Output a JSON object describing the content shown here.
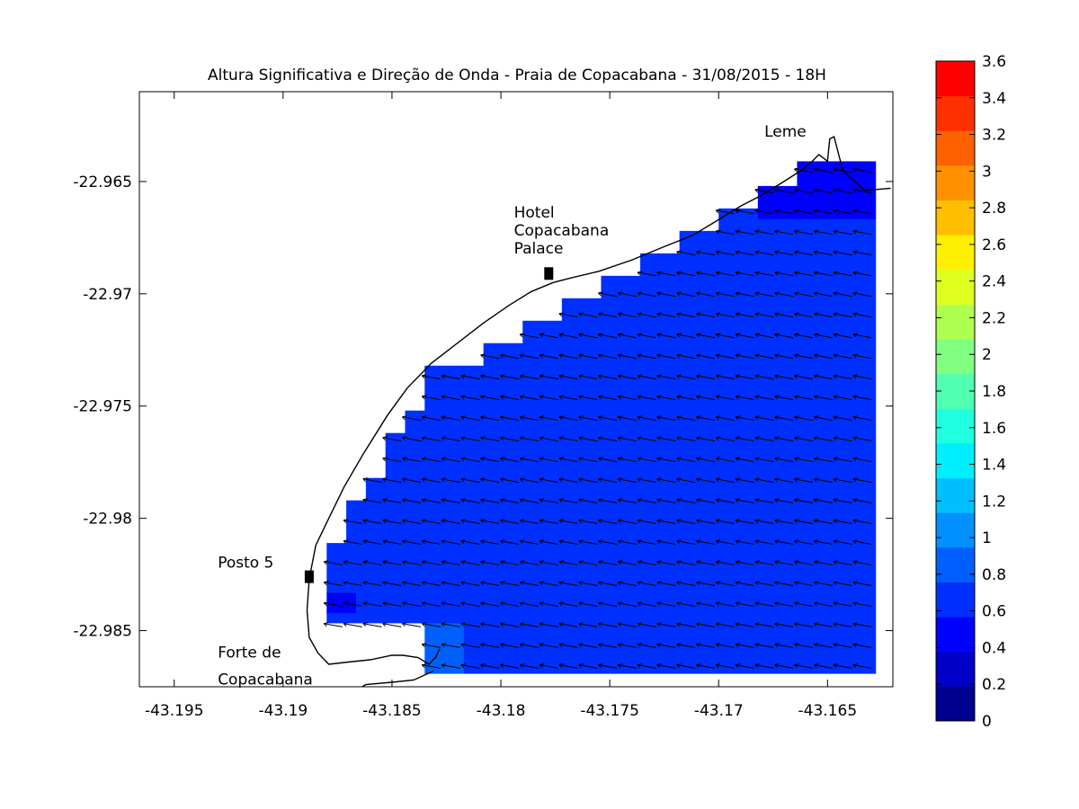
{
  "chart_data": {
    "type": "heatmap",
    "title": "Altura Significativa e Direção de Onda - Praia de Copacabana - 31/08/2015 - 18H",
    "xlabel": "",
    "ylabel": "",
    "xlim": [
      -43.1966,
      -43.162
    ],
    "ylim": [
      -22.9875,
      -22.961
    ],
    "x_ticks": [
      -43.195,
      -43.19,
      -43.185,
      -43.18,
      -43.175,
      -43.17,
      -43.165
    ],
    "x_tick_labels": [
      "-43.195",
      "-43.19",
      "-43.185",
      "-43.18",
      "-43.175",
      "-43.17",
      "-43.165"
    ],
    "y_ticks": [
      -22.965,
      -22.97,
      -22.975,
      -22.98,
      -22.985
    ],
    "y_tick_labels": [
      "-22.965",
      "-22.97",
      "-22.975",
      "-22.98",
      "-22.985"
    ],
    "grid": false,
    "colorbar": {
      "min": 0,
      "max": 3.6,
      "step": 0.2,
      "labels": [
        "0",
        "0.2",
        "0.4",
        "0.6",
        "0.8",
        "1",
        "1.2",
        "1.4",
        "1.6",
        "1.8",
        "2",
        "2.2",
        "2.4",
        "2.6",
        "2.8",
        "3",
        "3.2",
        "3.4",
        "3.6"
      ],
      "colors": [
        "#00008f",
        "#0000c8",
        "#0000ff",
        "#0030ff",
        "#0060ff",
        "#0090ff",
        "#00bfff",
        "#00efff",
        "#20ffdf",
        "#50ffaf",
        "#80ff80",
        "#afff50",
        "#dfff20",
        "#ffef00",
        "#ffbf00",
        "#ff9000",
        "#ff6000",
        "#ff3000",
        "#ff0000"
      ]
    },
    "wave_height": {
      "dominant_value": 0.7,
      "sheltered_leme_value": 0.55,
      "forte_corner_value": 0.95,
      "posto5_edge_value": 0.55
    },
    "wave_direction": {
      "arrow_pointing": "toward north-west (toward the beach)",
      "grid_spacing_deg": 0.00045
    },
    "grid_extent": {
      "east_lon": -43.163,
      "south_lat": -22.9869,
      "west_lon": -43.188,
      "north_lat": -22.964,
      "coast_steps": [
        [
          -43.188,
          -22.9811
        ],
        [
          -43.1871,
          -22.9792
        ],
        [
          -43.1862,
          -22.9782
        ],
        [
          -43.1853,
          -22.9762
        ],
        [
          -43.1843,
          -22.9752
        ],
        [
          -43.1834,
          -22.9732
        ],
        [
          -43.1807,
          -22.9722
        ],
        [
          -43.1789,
          -22.9712
        ],
        [
          -43.1771,
          -22.9702
        ],
        [
          -43.1754,
          -22.9692
        ],
        [
          -43.1735,
          -22.9682
        ],
        [
          -43.1718,
          -22.9672
        ],
        [
          -43.17,
          -22.9662
        ],
        [
          -43.1682,
          -22.9652
        ],
        [
          -43.1664,
          -22.9641
        ],
        [
          -43.165,
          -22.9641
        ]
      ]
    },
    "coastline": [
      [
        -43.1643,
        -22.9645
      ],
      [
        -43.1647,
        -22.963
      ],
      [
        -43.1649,
        -22.9631
      ],
      [
        -43.165,
        -22.9641
      ],
      [
        -43.1654,
        -22.9638
      ],
      [
        -43.1657,
        -22.9641
      ],
      [
        -43.1662,
        -22.9645
      ],
      [
        -43.167,
        -22.965
      ],
      [
        -43.168,
        -22.9656
      ],
      [
        -43.169,
        -22.9661
      ],
      [
        -43.17,
        -22.9667
      ],
      [
        -43.1712,
        -22.9674
      ],
      [
        -43.1725,
        -22.9679
      ],
      [
        -43.174,
        -22.9685
      ],
      [
        -43.1755,
        -22.969
      ],
      [
        -43.1768,
        -22.9693
      ],
      [
        -43.1776,
        -22.9695
      ],
      [
        -43.1786,
        -22.9699
      ],
      [
        -43.1796,
        -22.9705
      ],
      [
        -43.1808,
        -22.9713
      ],
      [
        -43.182,
        -22.9722
      ],
      [
        -43.1832,
        -22.9731
      ],
      [
        -43.1843,
        -22.9742
      ],
      [
        -43.1852,
        -22.9754
      ],
      [
        -43.1863,
        -22.9771
      ],
      [
        -43.1872,
        -22.9786
      ],
      [
        -43.1879,
        -22.98
      ],
      [
        -43.1885,
        -22.9812
      ],
      [
        -43.1888,
        -22.9827
      ],
      [
        -43.1889,
        -22.9841
      ],
      [
        -43.1888,
        -22.9853
      ],
      [
        -43.1884,
        -22.986
      ],
      [
        -43.1879,
        -22.9865
      ],
      [
        -43.187,
        -22.9864
      ],
      [
        -43.186,
        -22.9863
      ],
      [
        -43.185,
        -22.9861
      ],
      [
        -43.1845,
        -22.9861
      ],
      [
        -43.1838,
        -22.9862
      ],
      [
        -43.1833,
        -22.9865
      ],
      [
        -43.183,
        -22.9862
      ],
      [
        -43.1828,
        -22.9858
      ]
    ],
    "coastline_east": [
      [
        -43.1643,
        -22.9645
      ],
      [
        -43.1633,
        -22.9654
      ],
      [
        -43.1621,
        -22.9653
      ]
    ],
    "coastline_forte": [
      [
        -43.1831,
        -22.9868
      ],
      [
        -43.184,
        -22.9872
      ],
      [
        -43.185,
        -22.9873
      ],
      [
        -43.1862,
        -22.9874
      ],
      [
        -43.1869,
        -22.9878
      ],
      [
        -43.1875,
        -22.9882
      ],
      [
        -43.1879,
        -22.9886
      ],
      [
        -43.1883,
        -22.989
      ]
    ],
    "annotations": [
      {
        "text": "Leme",
        "lon": -43.1679,
        "lat": -22.963
      },
      {
        "text": "Hotel",
        "lon": -43.1794,
        "lat": -22.9666
      },
      {
        "text": "Copacabana",
        "lon": -43.1794,
        "lat": -22.9674
      },
      {
        "text": "Palace",
        "lon": -43.1794,
        "lat": -22.9682
      },
      {
        "text": "Posto 5",
        "lon": -43.193,
        "lat": -22.9822
      },
      {
        "text": "Forte de",
        "lon": -43.193,
        "lat": -22.9862
      },
      {
        "text": "Copacabana",
        "lon": -43.193,
        "lat": -22.9874
      }
    ],
    "markers": [
      {
        "name": "Copacabana Palace",
        "lon": -43.1778,
        "lat": -22.9691
      },
      {
        "name": "Posto 5",
        "lon": -43.1888,
        "lat": -22.9826
      }
    ]
  }
}
